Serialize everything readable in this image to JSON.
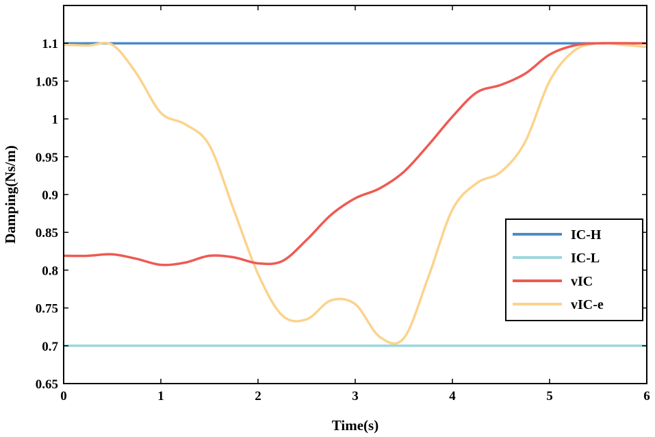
{
  "chart_data": {
    "type": "line",
    "title": "",
    "xlabel": "Time(s)",
    "ylabel": "Damping(Ns/m)",
    "xlim": [
      0,
      6
    ],
    "ylim": [
      0.65,
      1.15
    ],
    "xticks": [
      0,
      1,
      2,
      3,
      4,
      5,
      6
    ],
    "xtick_labels": [
      "0",
      "1",
      "2",
      "3",
      "4",
      "5",
      "6"
    ],
    "yticks": [
      0.65,
      0.7,
      0.75,
      0.8,
      0.85,
      0.9,
      0.95,
      1.0,
      1.05,
      1.1
    ],
    "ytick_labels": [
      "0.65",
      "0.7",
      "0.75",
      "0.8",
      "0.85",
      "0.9",
      "0.95",
      "1",
      "1.05",
      "1.1"
    ],
    "grid": false,
    "legend_position": "lower-right",
    "series": [
      {
        "name": "IC-H",
        "color": "#4A8CC7",
        "x": [
          0,
          6
        ],
        "y": [
          1.1,
          1.1
        ]
      },
      {
        "name": "IC-L",
        "color": "#9BD7DD",
        "x": [
          0,
          6
        ],
        "y": [
          0.7,
          0.7
        ]
      },
      {
        "name": "vIC",
        "color": "#EE5A52",
        "x": [
          0,
          0.25,
          0.5,
          0.75,
          1.0,
          1.25,
          1.5,
          1.75,
          2.0,
          2.25,
          2.5,
          2.75,
          3.0,
          3.25,
          3.5,
          3.75,
          4.0,
          4.25,
          4.5,
          4.75,
          5.0,
          5.25,
          5.5,
          6.0
        ],
        "y": [
          0.819,
          0.819,
          0.821,
          0.815,
          0.807,
          0.81,
          0.819,
          0.817,
          0.809,
          0.812,
          0.84,
          0.873,
          0.895,
          0.908,
          0.93,
          0.965,
          1.003,
          1.035,
          1.045,
          1.06,
          1.085,
          1.097,
          1.1,
          1.1
        ]
      },
      {
        "name": "vIC-e",
        "color": "#FBD38D",
        "x": [
          0,
          0.25,
          0.5,
          0.75,
          1.0,
          1.25,
          1.5,
          1.75,
          2.0,
          2.25,
          2.5,
          2.75,
          3.0,
          3.25,
          3.5,
          3.75,
          4.0,
          4.25,
          4.5,
          4.75,
          5.0,
          5.25,
          5.5,
          5.75,
          6.0
        ],
        "y": [
          1.098,
          1.097,
          1.098,
          1.06,
          1.008,
          0.993,
          0.965,
          0.88,
          0.795,
          0.74,
          0.735,
          0.76,
          0.755,
          0.712,
          0.71,
          0.79,
          0.88,
          0.915,
          0.93,
          0.97,
          1.05,
          1.09,
          1.1,
          1.098,
          1.095
        ]
      }
    ]
  }
}
